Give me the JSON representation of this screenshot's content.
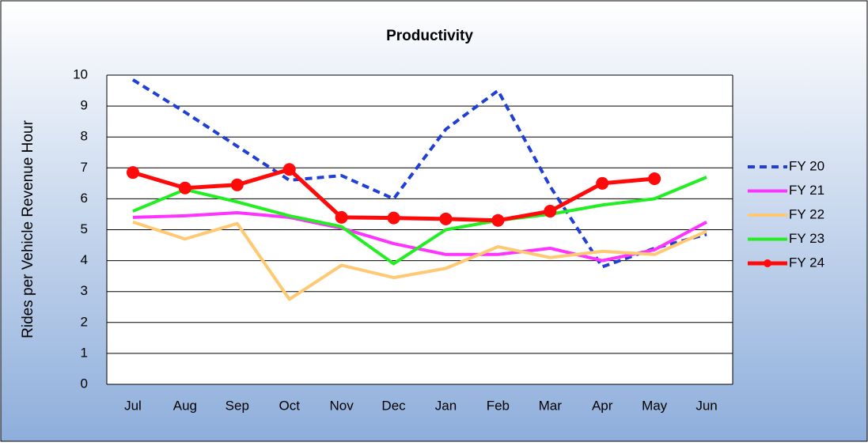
{
  "chart_data": {
    "type": "line",
    "title": "Productivity",
    "y_label": "Rides per Vehicle Revenue Hour",
    "categories": [
      "Jul",
      "Aug",
      "Sep",
      "Oct",
      "Nov",
      "Dec",
      "Jan",
      "Feb",
      "Mar",
      "Apr",
      "May",
      "Jun"
    ],
    "ylim": [
      0,
      10
    ],
    "yticks": [
      0,
      1,
      2,
      3,
      4,
      5,
      6,
      7,
      8,
      9,
      10
    ],
    "grid": true,
    "legend": "right",
    "series": [
      {
        "name": "FY 20",
        "color": "#1f3fd6",
        "line_style": "dashed",
        "values": [
          9.85,
          8.8,
          7.7,
          6.6,
          6.75,
          6.0,
          8.25,
          9.5,
          6.4,
          3.8,
          4.4,
          4.85
        ]
      },
      {
        "name": "FY 21",
        "color": "#ff33ff",
        "values": [
          5.4,
          5.45,
          5.55,
          5.4,
          5.05,
          4.55,
          4.2,
          4.2,
          4.4,
          4.0,
          4.35,
          5.25
        ]
      },
      {
        "name": "FY 22",
        "color": "#ffc973",
        "values": [
          5.25,
          4.7,
          5.2,
          2.75,
          3.85,
          3.45,
          3.75,
          4.45,
          4.1,
          4.3,
          4.2,
          4.95
        ]
      },
      {
        "name": "FY 23",
        "color": "#22ee22",
        "values": [
          5.6,
          6.3,
          5.9,
          5.45,
          5.1,
          3.9,
          5.0,
          5.3,
          5.5,
          5.8,
          6.0,
          6.7
        ]
      },
      {
        "name": "FY 24",
        "color": "#ff0a0a",
        "marker": "circle",
        "values": [
          6.85,
          6.35,
          6.45,
          6.95,
          5.4,
          5.38,
          5.35,
          5.3,
          5.6,
          6.5,
          6.65,
          null
        ]
      }
    ]
  }
}
